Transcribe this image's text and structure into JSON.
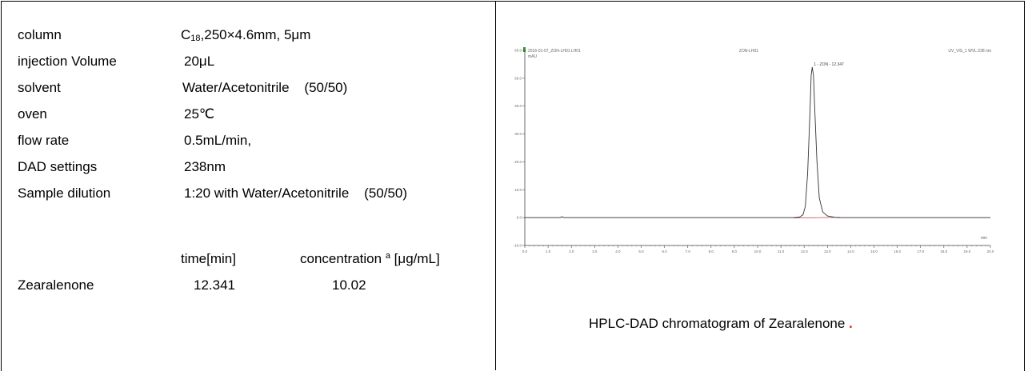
{
  "params": [
    {
      "label": "column",
      "value_pre": "C",
      "value_sub": "18",
      "value_post": ",250×4.6mm, 5μm"
    },
    {
      "label": "injection Volume",
      "value": "20μL"
    },
    {
      "label": "solvent",
      "value": "Water/Acetonitrile    (50/50)"
    },
    {
      "label": "oven",
      "value": "25℃"
    },
    {
      "label": "flow rate",
      "value": "0.5mL/min,"
    },
    {
      "label": "DAD settings",
      "value": "238nm"
    },
    {
      "label": "Sample dilution",
      "value": "1:20 with Water/Acetonitrile    (50/50)"
    }
  ],
  "results": {
    "col_time": "time[min]",
    "col_conc": "concentration",
    "col_conc_sup": "a",
    "col_conc_unit": "[μg/mL]",
    "row_name": "Zearalenone",
    "time": "12.341",
    "conc": "10.02"
  },
  "chromatogram": {
    "header_left": "2016-01-07_ZON-LH01 LH01",
    "header_mid": "ZON-LH01",
    "header_right": "UV_VIS_1 WVL:238 nm",
    "y_unit": "mAU",
    "x_unit": "min",
    "peak_label": "1 - ZON - 12.347"
  },
  "chart_data": {
    "type": "line",
    "title": "",
    "xlabel": "min",
    "ylabel": "mAU",
    "xlim": [
      0.0,
      20.0
    ],
    "ylim": [
      -10.0,
      60.0
    ],
    "x_ticks": [
      "0.0",
      "1.0",
      "2.0",
      "3.0",
      "4.0",
      "5.0",
      "6.0",
      "7.0",
      "8.0",
      "9.0",
      "10.0",
      "11.0",
      "12.0",
      "13.0",
      "14.0",
      "15.0",
      "16.0",
      "17.0",
      "18.0",
      "19.0",
      "20.0"
    ],
    "y_ticks": [
      "-10.0",
      "0.0",
      "10.0",
      "20.0",
      "30.0",
      "40.0",
      "50.0",
      "60.0"
    ],
    "series": [
      {
        "values": [
          [
            0.0,
            0.0
          ],
          [
            1.5,
            0.0
          ],
          [
            1.6,
            0.3
          ],
          [
            1.7,
            0.0
          ],
          [
            11.6,
            0.0
          ],
          [
            11.8,
            0.2
          ],
          [
            11.95,
            1.0
          ],
          [
            12.05,
            4.0
          ],
          [
            12.15,
            16.0
          ],
          [
            12.25,
            38.0
          ],
          [
            12.3,
            51.0
          ],
          [
            12.347,
            54.0
          ],
          [
            12.4,
            51.0
          ],
          [
            12.45,
            40.0
          ],
          [
            12.55,
            20.0
          ],
          [
            12.65,
            7.0
          ],
          [
            12.8,
            2.0
          ],
          [
            13.0,
            0.6
          ],
          [
            13.4,
            0.0
          ],
          [
            20.0,
            0.0
          ]
        ]
      }
    ],
    "peaks": [
      {
        "name": "ZON",
        "time": 12.347,
        "height": 54.0
      }
    ],
    "caption": "HPLC-DAD chromatogram of Zearalenone",
    "caption_mark": "."
  }
}
